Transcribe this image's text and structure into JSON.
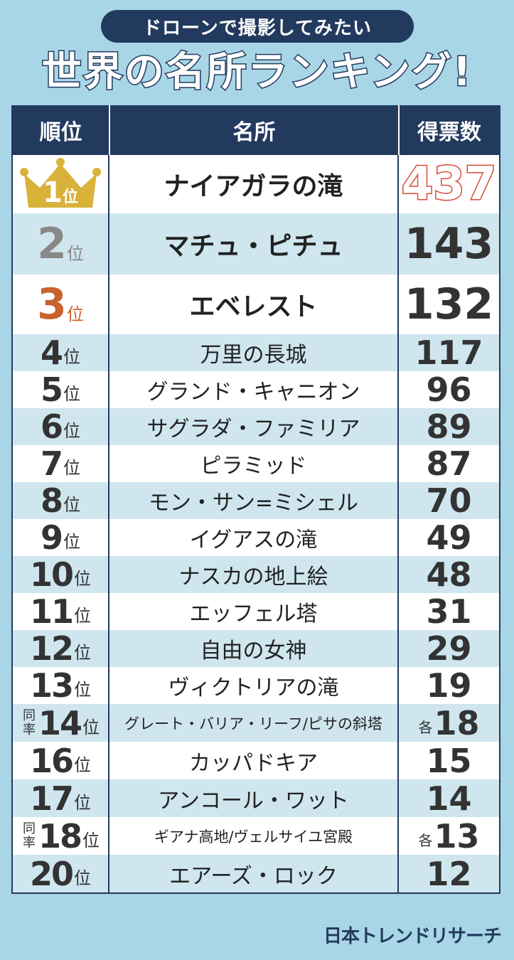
{
  "header": {
    "subtitle": "ドローンで撮影してみたい",
    "title": "世界の名所ランキング!"
  },
  "colors": {
    "navy": "#233a5f",
    "background": "#a9d6e6",
    "alt_row": "#cfe6ef",
    "gold": "#d9b23a",
    "silver": "#888888",
    "bronze": "#c9622e",
    "top_vote_outline": "#d94a3a"
  },
  "chart_data": {
    "type": "table",
    "columns": [
      "順位",
      "名所",
      "得票数"
    ],
    "rows": [
      {
        "rank": "1",
        "suffix": "位",
        "tied": "",
        "name": "ナイアガラの滝",
        "votes": "437",
        "each": ""
      },
      {
        "rank": "2",
        "suffix": "位",
        "tied": "",
        "name": "マチュ・ピチュ",
        "votes": "143",
        "each": ""
      },
      {
        "rank": "3",
        "suffix": "位",
        "tied": "",
        "name": "エベレスト",
        "votes": "132",
        "each": ""
      },
      {
        "rank": "4",
        "suffix": "位",
        "tied": "",
        "name": "万里の長城",
        "votes": "117",
        "each": ""
      },
      {
        "rank": "5",
        "suffix": "位",
        "tied": "",
        "name": "グランド・キャニオン",
        "votes": "96",
        "each": ""
      },
      {
        "rank": "6",
        "suffix": "位",
        "tied": "",
        "name": "サグラダ・ファミリア",
        "votes": "89",
        "each": ""
      },
      {
        "rank": "7",
        "suffix": "位",
        "tied": "",
        "name": "ピラミッド",
        "votes": "87",
        "each": ""
      },
      {
        "rank": "8",
        "suffix": "位",
        "tied": "",
        "name": "モン・サン=ミシェル",
        "votes": "70",
        "each": ""
      },
      {
        "rank": "9",
        "suffix": "位",
        "tied": "",
        "name": "イグアスの滝",
        "votes": "49",
        "each": ""
      },
      {
        "rank": "10",
        "suffix": "位",
        "tied": "",
        "name": "ナスカの地上絵",
        "votes": "48",
        "each": ""
      },
      {
        "rank": "11",
        "suffix": "位",
        "tied": "",
        "name": "エッフェル塔",
        "votes": "31",
        "each": ""
      },
      {
        "rank": "12",
        "suffix": "位",
        "tied": "",
        "name": "自由の女神",
        "votes": "29",
        "each": ""
      },
      {
        "rank": "13",
        "suffix": "位",
        "tied": "",
        "name": "ヴィクトリアの滝",
        "votes": "19",
        "each": ""
      },
      {
        "rank": "14",
        "suffix": "位",
        "tied": "同率",
        "name": "グレート・バリア・リーフ/ピサの斜塔",
        "votes": "18",
        "each": "各"
      },
      {
        "rank": "16",
        "suffix": "位",
        "tied": "",
        "name": "カッパドキア",
        "votes": "15",
        "each": ""
      },
      {
        "rank": "17",
        "suffix": "位",
        "tied": "",
        "name": "アンコール・ワット",
        "votes": "14",
        "each": ""
      },
      {
        "rank": "18",
        "suffix": "位",
        "tied": "同率",
        "name": "ギアナ高地/ヴェルサイユ宮殿",
        "votes": "13",
        "each": "各"
      },
      {
        "rank": "20",
        "suffix": "位",
        "tied": "",
        "name": "エアーズ・ロック",
        "votes": "12",
        "each": ""
      }
    ]
  },
  "footer": {
    "brand": "日本トレンドリサーチ"
  }
}
